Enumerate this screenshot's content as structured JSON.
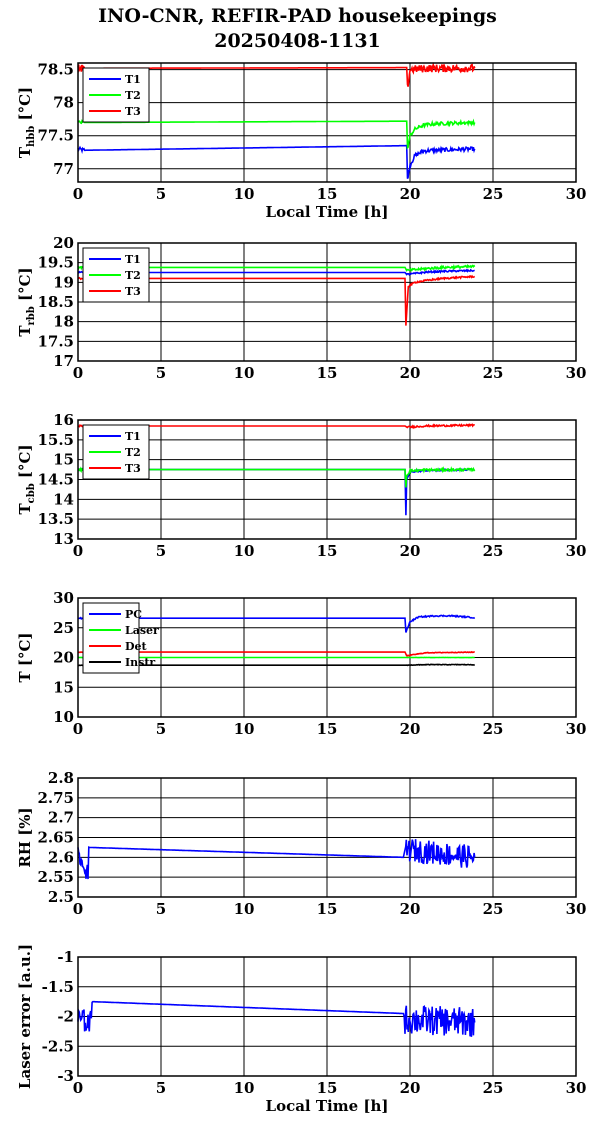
{
  "title": {
    "line1": "INO-CNR, REFIR-PAD housekeepings",
    "line2": "20250408-1131"
  },
  "colors": {
    "blue": "#0000ff",
    "green": "#00ff00",
    "red": "#ff0000",
    "black": "#000000"
  },
  "chart_data": [
    {
      "type": "line",
      "ylabel_main": "T",
      "ylabel_sub": "hbb",
      "ylabel_unit": "[°C]",
      "xlabel": "Local Time [h]",
      "xlim": [
        0,
        30
      ],
      "ylim": [
        76.8,
        78.6
      ],
      "xticks": [
        "0",
        "5",
        "10",
        "15",
        "20",
        "25",
        "30"
      ],
      "yticks": [
        77,
        77.5,
        78,
        78.5
      ],
      "ytick_labels": [
        "77",
        "77.5",
        "78",
        "78.5"
      ],
      "grid": true,
      "legend": "top-left",
      "series": [
        {
          "name": "T1",
          "color": "blue",
          "x": [
            0,
            0.4,
            19.8,
            19.85,
            20.0,
            20.3,
            20.8,
            21.5,
            22.5,
            23.9
          ],
          "y": [
            77.3,
            77.28,
            77.35,
            76.85,
            77.05,
            77.2,
            77.27,
            77.28,
            77.29,
            77.3
          ],
          "noise": 0.03
        },
        {
          "name": "T2",
          "color": "green",
          "x": [
            0,
            0.4,
            19.8,
            19.85,
            20.0,
            20.3,
            20.8,
            21.5,
            22.5,
            23.9
          ],
          "y": [
            77.7,
            77.7,
            77.72,
            77.3,
            77.5,
            77.6,
            77.66,
            77.68,
            77.69,
            77.7
          ],
          "noise": 0.025
        },
        {
          "name": "T3",
          "color": "red",
          "x": [
            0,
            0.4,
            19.8,
            19.85,
            20.0,
            21.0,
            22.0,
            23.9
          ],
          "y": [
            78.52,
            78.52,
            78.53,
            78.22,
            78.5,
            78.52,
            78.52,
            78.52
          ],
          "noise": 0.06
        }
      ]
    },
    {
      "type": "line",
      "ylabel_main": "T",
      "ylabel_sub": "rbb",
      "ylabel_unit": "[°C]",
      "xlabel": "",
      "xlim": [
        0,
        30
      ],
      "ylim": [
        17,
        20
      ],
      "xticks": [
        "0",
        "5",
        "10",
        "15",
        "20",
        "25",
        "30"
      ],
      "yticks": [
        17,
        17.5,
        18,
        18.5,
        19,
        19.5,
        20
      ],
      "ytick_labels": [
        "17",
        "17.5",
        "18",
        "18.5",
        "19",
        "19.5",
        "20"
      ],
      "grid": true,
      "legend": "top-left",
      "series": [
        {
          "name": "T1",
          "color": "blue",
          "x": [
            0,
            19.7,
            19.8,
            20.2,
            21.0,
            22.0,
            23.9
          ],
          "y": [
            19.25,
            19.25,
            19.2,
            19.22,
            19.26,
            19.28,
            19.3
          ],
          "noise": 0.02
        },
        {
          "name": "T2",
          "color": "green",
          "x": [
            0,
            19.7,
            19.8,
            20.2,
            21.0,
            22.0,
            23.9
          ],
          "y": [
            19.38,
            19.38,
            19.3,
            19.32,
            19.35,
            19.38,
            19.4
          ],
          "noise": 0.03
        },
        {
          "name": "T3",
          "color": "red",
          "x": [
            0,
            19.7,
            19.75,
            19.9,
            20.3,
            21.0,
            22.0,
            23.9
          ],
          "y": [
            19.1,
            19.1,
            17.9,
            18.9,
            19.0,
            19.05,
            19.1,
            19.15
          ],
          "noise": 0.02
        }
      ]
    },
    {
      "type": "line",
      "ylabel_main": "T",
      "ylabel_sub": "cbb",
      "ylabel_unit": "[°C]",
      "xlabel": "",
      "xlim": [
        0,
        30
      ],
      "ylim": [
        13,
        16
      ],
      "xticks": [
        "0",
        "5",
        "10",
        "15",
        "20",
        "25",
        "30"
      ],
      "yticks": [
        13,
        13.5,
        14,
        14.5,
        15,
        15.5,
        16
      ],
      "ytick_labels": [
        "13",
        "13.5",
        "14",
        "14.5",
        "15",
        "15.5",
        "16"
      ],
      "grid": true,
      "legend": "top-left",
      "series": [
        {
          "name": "T1",
          "color": "blue",
          "x": [
            0,
            19.7,
            19.75,
            19.8,
            20.0,
            21.0,
            23.9
          ],
          "y": [
            14.75,
            14.75,
            13.6,
            14.5,
            14.7,
            14.73,
            14.75
          ],
          "noise": 0.02
        },
        {
          "name": "T2",
          "color": "green",
          "x": [
            0,
            19.7,
            19.75,
            19.8,
            20.0,
            21.0,
            23.9
          ],
          "y": [
            14.75,
            14.75,
            14.3,
            14.6,
            14.72,
            14.74,
            14.75
          ],
          "noise": 0.03
        },
        {
          "name": "T3",
          "color": "red",
          "x": [
            0,
            19.7,
            19.8,
            21.0,
            23.9
          ],
          "y": [
            15.85,
            15.85,
            15.82,
            15.85,
            15.87
          ],
          "noise": 0.02
        }
      ]
    },
    {
      "type": "line",
      "ylabel_main": "T [°C]",
      "ylabel_sub": "",
      "ylabel_unit": "",
      "xlabel": "",
      "xlim": [
        0,
        30
      ],
      "ylim": [
        10,
        30
      ],
      "xticks": [
        "0",
        "5",
        "10",
        "15",
        "20",
        "25",
        "30"
      ],
      "yticks": [
        10,
        15,
        20,
        25,
        30
      ],
      "ytick_labels": [
        "10",
        "15",
        "20",
        "25",
        "30"
      ],
      "grid": true,
      "legend": "top-left",
      "series": [
        {
          "name": "PC",
          "color": "blue",
          "x": [
            0,
            19.7,
            19.75,
            20.0,
            20.5,
            21.5,
            22.5,
            23.9
          ],
          "y": [
            26.6,
            26.6,
            24.2,
            26.0,
            26.8,
            27.0,
            27.0,
            26.7
          ],
          "noise": 0.1
        },
        {
          "name": "Laser",
          "color": "green",
          "x": [
            0,
            23.9
          ],
          "y": [
            20.0,
            20.0
          ],
          "noise": 0.02
        },
        {
          "name": "Det",
          "color": "red",
          "x": [
            0,
            19.7,
            19.8,
            20.5,
            21.0,
            23.9
          ],
          "y": [
            20.9,
            20.9,
            20.3,
            20.6,
            20.8,
            20.9
          ],
          "noise": 0.05
        },
        {
          "name": "Instr",
          "color": "black",
          "x": [
            0,
            19.7,
            21.0,
            23.9
          ],
          "y": [
            18.7,
            18.7,
            18.8,
            18.8
          ],
          "noise": 0.05
        }
      ]
    },
    {
      "type": "line",
      "ylabel_main": "RH [%]",
      "ylabel_sub": "",
      "ylabel_unit": "",
      "xlabel": "",
      "xlim": [
        0,
        30
      ],
      "ylim": [
        2.5,
        2.8
      ],
      "xticks": [
        "0",
        "5",
        "10",
        "15",
        "20",
        "25",
        "30"
      ],
      "yticks": [
        2.5,
        2.55,
        2.6,
        2.65,
        2.7,
        2.75,
        2.8
      ],
      "ytick_labels": [
        "2.5",
        "2.55",
        "2.6",
        "2.65",
        "2.7",
        "2.75",
        "2.8"
      ],
      "grid": true,
      "legend": "",
      "series": [
        {
          "name": "",
          "color": "blue",
          "x": [
            0,
            0.6,
            0.65,
            19.6,
            19.7,
            23.9
          ],
          "y": [
            2.6,
            2.56,
            2.625,
            2.6,
            2.62,
            2.6
          ],
          "noise_segments": [
            [
              0,
              0.65,
              0.025
            ],
            [
              19.7,
              23.9,
              0.03
            ]
          ]
        }
      ]
    },
    {
      "type": "line",
      "ylabel_main": "Laser error [a.u.]",
      "ylabel_sub": "",
      "ylabel_unit": "",
      "xlabel": "Local Time [h]",
      "xlim": [
        0,
        30
      ],
      "ylim": [
        -3,
        -1
      ],
      "xticks": [
        "0",
        "5",
        "10",
        "15",
        "20",
        "25",
        "30"
      ],
      "yticks": [
        -3,
        -2.5,
        -2,
        -1.5,
        -1
      ],
      "ytick_labels": [
        "-3",
        "-2.5",
        "-2",
        "-1.5",
        "-1"
      ],
      "grid": true,
      "legend": "",
      "series": [
        {
          "name": "",
          "color": "blue",
          "x": [
            0,
            0.8,
            0.85,
            19.6,
            19.7,
            23.9
          ],
          "y": [
            -2.05,
            -2.1,
            -1.75,
            -1.95,
            -2.05,
            -2.1
          ],
          "noise_segments": [
            [
              0,
              0.85,
              0.2
            ],
            [
              19.7,
              23.9,
              0.25
            ]
          ]
        }
      ]
    }
  ]
}
